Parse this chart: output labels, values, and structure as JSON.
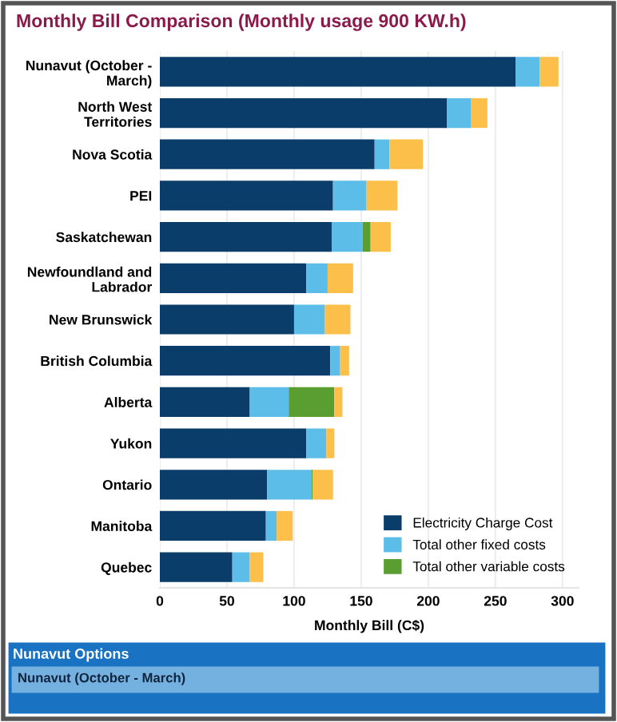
{
  "chart_data": {
    "type": "bar",
    "orientation": "horizontal",
    "stacked": true,
    "title": "Monthly Bill Comparison (Monthly usage 900 KW.h)",
    "xlabel": "Monthly Bill (C$)",
    "categories": [
      "Nunavut (October -\nMarch)",
      "North West\nTerritories",
      "Nova Scotia",
      "PEI",
      "Saskatchewan",
      "Newfoundland and\nLabrador",
      "New Brunswick",
      "British Columbia",
      "Alberta",
      "Yukon",
      "Ontario",
      "Manitoba",
      "Quebec"
    ],
    "series": [
      {
        "name": "Electricity Charge Cost",
        "color": "#0b3d6b",
        "values": [
          265,
          214,
          160,
          129,
          128,
          109,
          100,
          127,
          67,
          109,
          80,
          79,
          54
        ]
      },
      {
        "name": "Total other fixed costs",
        "color": "#5bbde8",
        "values": [
          18,
          18,
          11,
          25,
          23,
          16,
          23,
          7,
          29,
          15,
          33,
          8,
          13
        ]
      },
      {
        "name": "Total other variable costs",
        "color": "#5a9e32",
        "values": [
          0,
          0,
          0,
          0,
          6,
          0,
          0,
          0,
          34,
          0,
          1,
          0,
          0
        ]
      },
      {
        "color": "#fbbf4a",
        "values": [
          14,
          12,
          25,
          23,
          15,
          19,
          19,
          7,
          6,
          6,
          15,
          12,
          10
        ]
      }
    ],
    "xlim": [
      0,
      312
    ],
    "xticks": [
      0,
      50,
      100,
      150,
      200,
      250,
      300
    ],
    "grid": "x",
    "legend": "bottom right",
    "annotations": [
      "Nunavut Options",
      "Nunavut (October - March)"
    ]
  }
}
